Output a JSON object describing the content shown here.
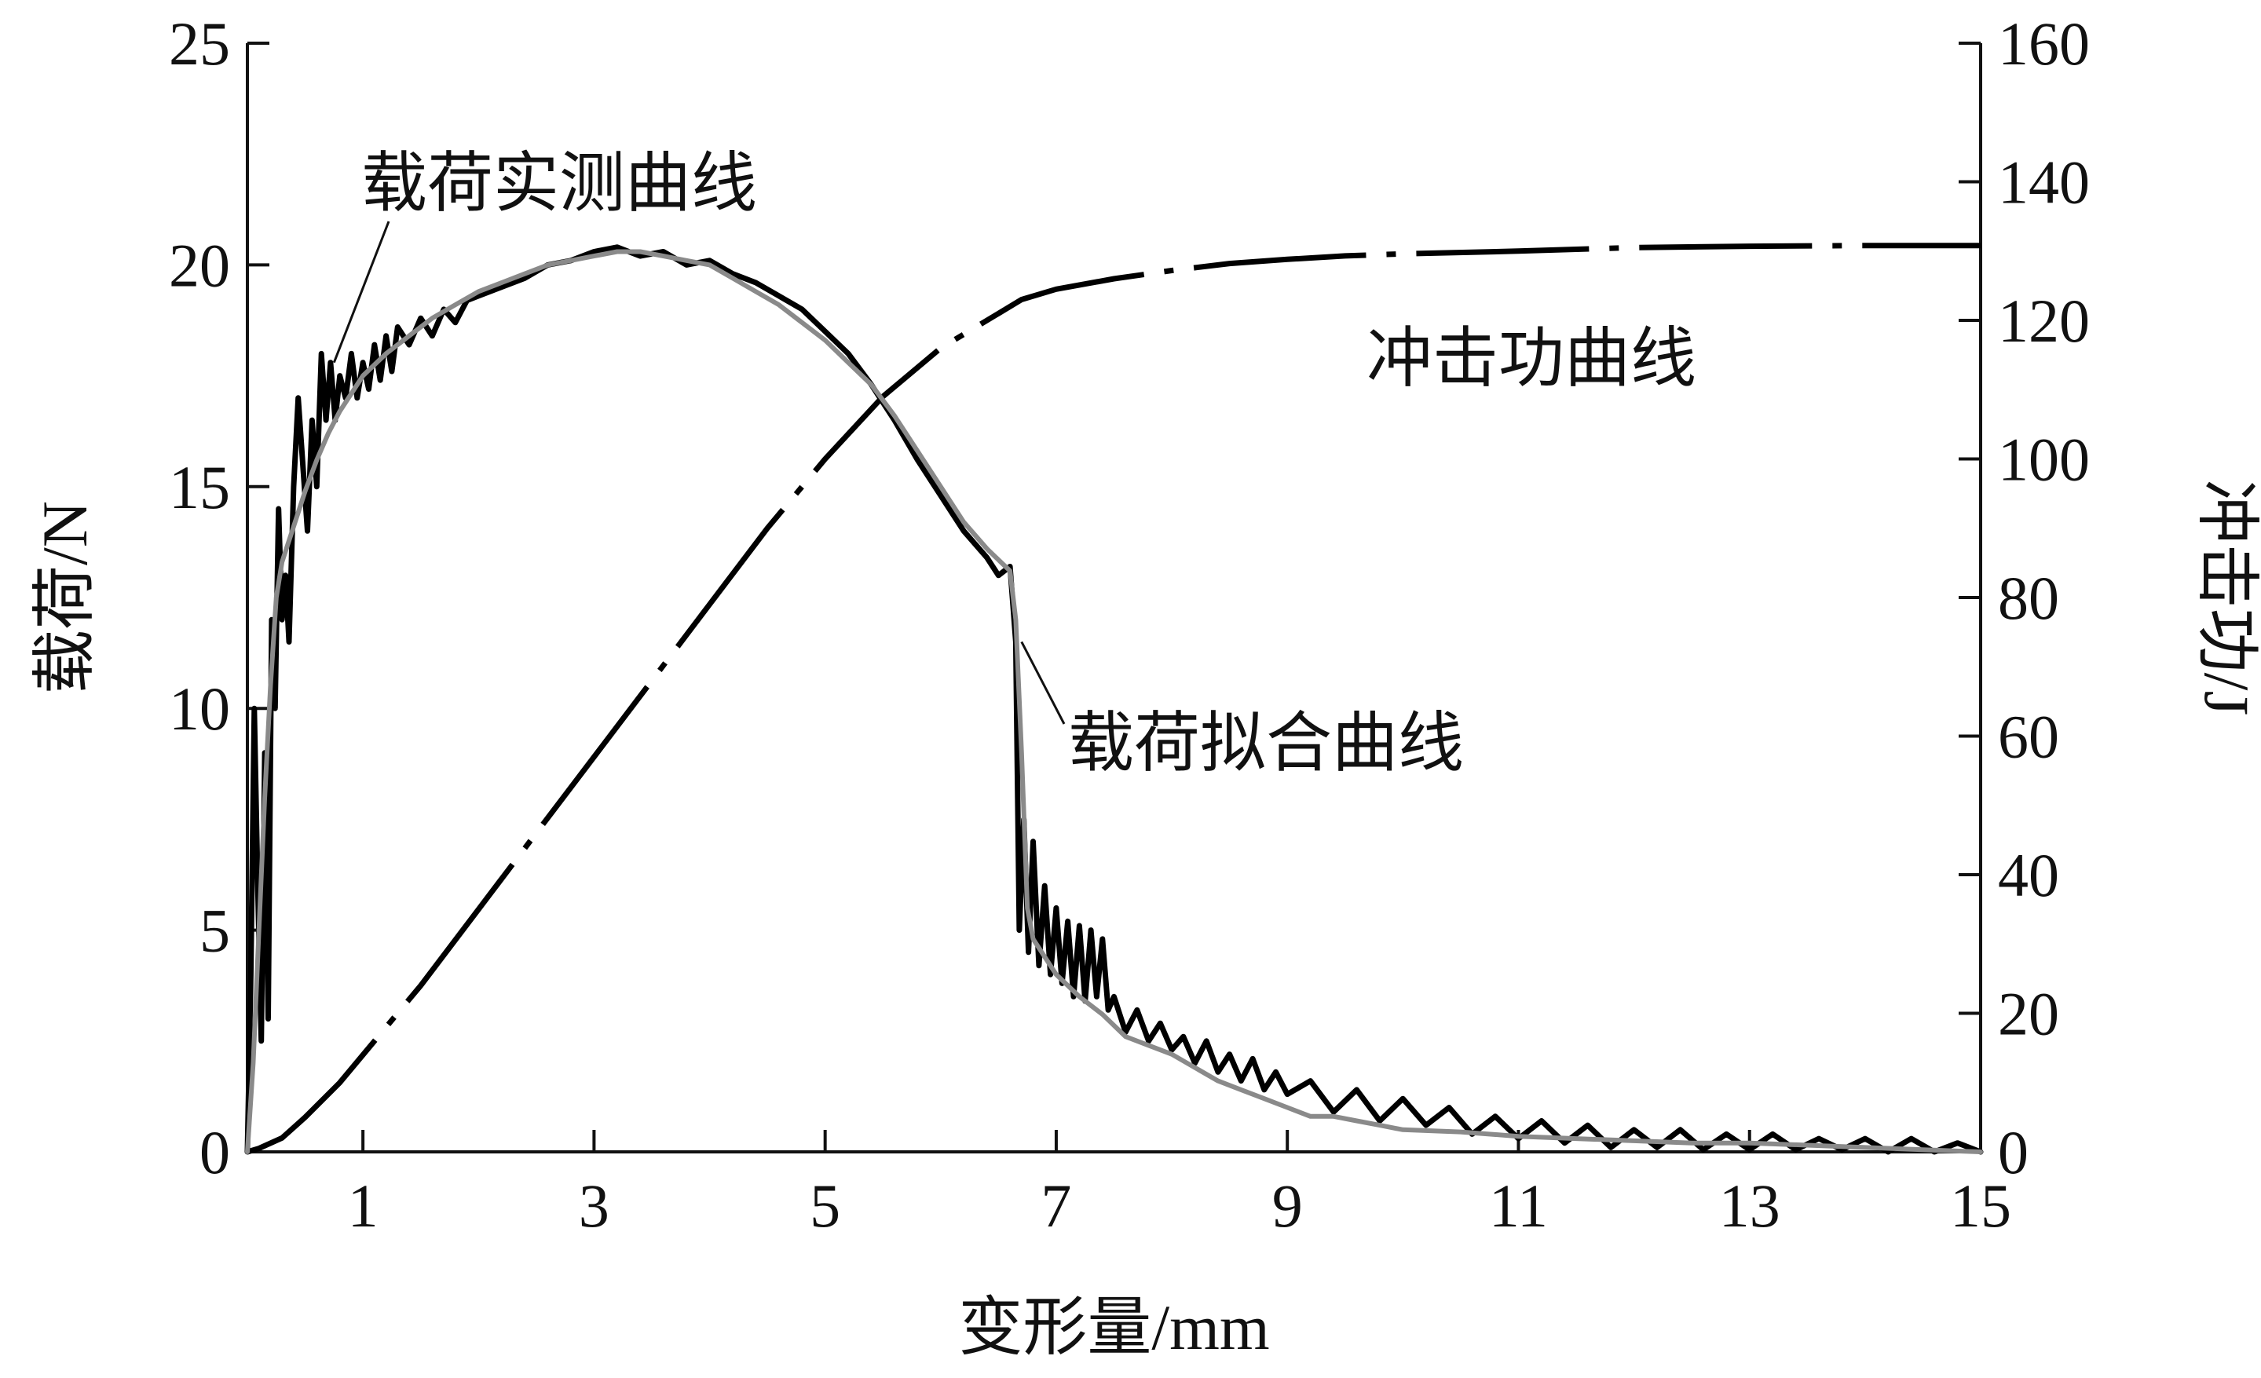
{
  "chart_data": {
    "type": "line",
    "xlabel": "变形量/mm",
    "ylabel_left": "载荷/N",
    "ylabel_right": "冲击功/J",
    "xlim": [
      0,
      15
    ],
    "ylim_left": [
      0,
      25
    ],
    "ylim_right": [
      0,
      160
    ],
    "x_ticks": [
      1,
      3,
      5,
      7,
      9,
      11,
      13,
      15
    ],
    "y_left_ticks": [
      0,
      5,
      10,
      15,
      20,
      25
    ],
    "y_right_ticks": [
      0,
      20,
      40,
      60,
      80,
      100,
      120,
      140,
      160
    ],
    "grid": false,
    "annotations": [
      {
        "text": "载荷实测曲线",
        "target": [
          0.75,
          17.8
        ]
      },
      {
        "text": "载荷拟合曲线",
        "target": [
          6.7,
          11.5
        ]
      },
      {
        "text": "冲击功曲线"
      }
    ],
    "series": [
      {
        "name": "冲击功曲线",
        "axis": "right",
        "style": "dash-dot",
        "color": "#000000",
        "x": [
          0,
          0.1,
          0.3,
          0.5,
          0.8,
          1.0,
          1.5,
          2.0,
          2.5,
          3.0,
          3.5,
          4.0,
          4.5,
          5.0,
          5.5,
          6.0,
          6.5,
          6.7,
          7.0,
          7.5,
          8.0,
          8.5,
          9.0,
          9.5,
          10.0,
          11.0,
          12.0,
          13.0,
          14.0,
          15.0
        ],
        "y": [
          0,
          0.5,
          2,
          5,
          10,
          14,
          24,
          35,
          46,
          57,
          68,
          79,
          90,
          100,
          109,
          116,
          121,
          123,
          124.5,
          126,
          127.2,
          128.2,
          128.8,
          129.3,
          129.6,
          130,
          130.5,
          130.7,
          130.8,
          130.8
        ]
      },
      {
        "name": "载荷实测曲线",
        "axis": "left",
        "color": "#000000",
        "x": [
          0,
          0.03,
          0.06,
          0.09,
          0.12,
          0.15,
          0.18,
          0.21,
          0.24,
          0.27,
          0.3,
          0.33,
          0.36,
          0.4,
          0.44,
          0.48,
          0.52,
          0.56,
          0.6,
          0.64,
          0.68,
          0.72,
          0.76,
          0.8,
          0.85,
          0.9,
          0.95,
          1.0,
          1.05,
          1.1,
          1.15,
          1.2,
          1.25,
          1.3,
          1.4,
          1.5,
          1.6,
          1.7,
          1.8,
          1.9,
          2.0,
          2.2,
          2.4,
          2.6,
          2.8,
          3.0,
          3.2,
          3.4,
          3.6,
          3.8,
          4.0,
          4.2,
          4.4,
          4.6,
          4.8,
          5.0,
          5.2,
          5.4,
          5.6,
          5.8,
          6.0,
          6.2,
          6.4,
          6.5,
          6.6,
          6.65,
          6.68,
          6.72,
          6.76,
          6.8,
          6.85,
          6.9,
          6.95,
          7.0,
          7.05,
          7.1,
          7.15,
          7.2,
          7.25,
          7.3,
          7.35,
          7.4,
          7.45,
          7.5,
          7.6,
          7.7,
          7.8,
          7.9,
          8.0,
          8.1,
          8.2,
          8.3,
          8.4,
          8.5,
          8.6,
          8.7,
          8.8,
          8.9,
          9.0,
          9.2,
          9.4,
          9.6,
          9.8,
          10.0,
          10.2,
          10.4,
          10.6,
          10.8,
          11.0,
          11.2,
          11.4,
          11.6,
          11.8,
          12.0,
          12.2,
          12.4,
          12.6,
          12.8,
          13.0,
          13.2,
          13.4,
          13.6,
          13.8,
          14.0,
          14.2,
          14.4,
          14.6,
          14.8,
          15.0
        ],
        "y": [
          0,
          4,
          10,
          6,
          2.5,
          9,
          3,
          12,
          10,
          14.5,
          12,
          13,
          11.5,
          15,
          17,
          15.5,
          14,
          16.5,
          15,
          18,
          16.5,
          17.8,
          16.5,
          17.5,
          17,
          18,
          17,
          17.8,
          17.2,
          18.2,
          17.4,
          18.4,
          17.6,
          18.6,
          18.2,
          18.8,
          18.4,
          19,
          18.7,
          19.2,
          19.3,
          19.5,
          19.7,
          20.0,
          20.1,
          20.3,
          20.4,
          20.2,
          20.3,
          20.0,
          20.1,
          19.8,
          19.6,
          19.3,
          19.0,
          18.5,
          18.0,
          17.3,
          16.5,
          15.6,
          14.8,
          14.0,
          13.4,
          13.0,
          13.2,
          11.5,
          5,
          7.5,
          4.5,
          7,
          4.2,
          6,
          4,
          5.5,
          3.8,
          5.2,
          3.5,
          5.1,
          3.4,
          5.0,
          3.5,
          4.8,
          3.2,
          3.5,
          2.7,
          3.2,
          2.5,
          2.9,
          2.3,
          2.6,
          2.0,
          2.5,
          1.8,
          2.2,
          1.6,
          2.1,
          1.4,
          1.8,
          1.3,
          1.6,
          0.9,
          1.4,
          0.7,
          1.2,
          0.6,
          1.0,
          0.4,
          0.8,
          0.3,
          0.7,
          0.2,
          0.6,
          0.1,
          0.5,
          0.1,
          0.5,
          0.05,
          0.4,
          0.05,
          0.4,
          0.05,
          0.3,
          0.05,
          0.3,
          0.0,
          0.3,
          0.0,
          0.2,
          0.0
        ]
      },
      {
        "name": "载荷拟合曲线",
        "axis": "left",
        "color": "#8a8a8a",
        "x": [
          0,
          0.05,
          0.1,
          0.15,
          0.2,
          0.25,
          0.3,
          0.4,
          0.5,
          0.6,
          0.7,
          0.8,
          0.9,
          1.0,
          1.2,
          1.4,
          1.6,
          1.8,
          2.0,
          2.2,
          2.4,
          2.6,
          2.8,
          3.0,
          3.2,
          3.4,
          3.6,
          3.8,
          4.0,
          4.2,
          4.4,
          4.6,
          4.8,
          5.0,
          5.2,
          5.4,
          5.6,
          5.8,
          6.0,
          6.2,
          6.4,
          6.6,
          6.65,
          6.7,
          6.75,
          6.8,
          7.0,
          7.2,
          7.4,
          7.6,
          7.8,
          8.0,
          8.2,
          8.4,
          8.6,
          8.8,
          9.0,
          9.2,
          9.4,
          9.6,
          9.8,
          10.0,
          10.5,
          11.0,
          11.5,
          12.0,
          12.5,
          13.0,
          13.5,
          14.0,
          14.5,
          15.0
        ],
        "y": [
          0,
          2,
          5,
          8,
          10.5,
          12.5,
          13.3,
          14.1,
          14.9,
          15.6,
          16.2,
          16.7,
          17.1,
          17.5,
          18.0,
          18.4,
          18.8,
          19.1,
          19.4,
          19.6,
          19.8,
          20.0,
          20.1,
          20.2,
          20.3,
          20.3,
          20.2,
          20.1,
          20.0,
          19.7,
          19.4,
          19.1,
          18.7,
          18.3,
          17.8,
          17.3,
          16.6,
          15.8,
          15.0,
          14.2,
          13.6,
          13.1,
          12.0,
          9.0,
          5.5,
          4.8,
          4.0,
          3.5,
          3.1,
          2.6,
          2.4,
          2.2,
          1.9,
          1.6,
          1.4,
          1.2,
          1.0,
          0.8,
          0.8,
          0.7,
          0.6,
          0.5,
          0.45,
          0.35,
          0.3,
          0.25,
          0.2,
          0.2,
          0.15,
          0.1,
          0.05,
          0.0
        ]
      }
    ]
  }
}
